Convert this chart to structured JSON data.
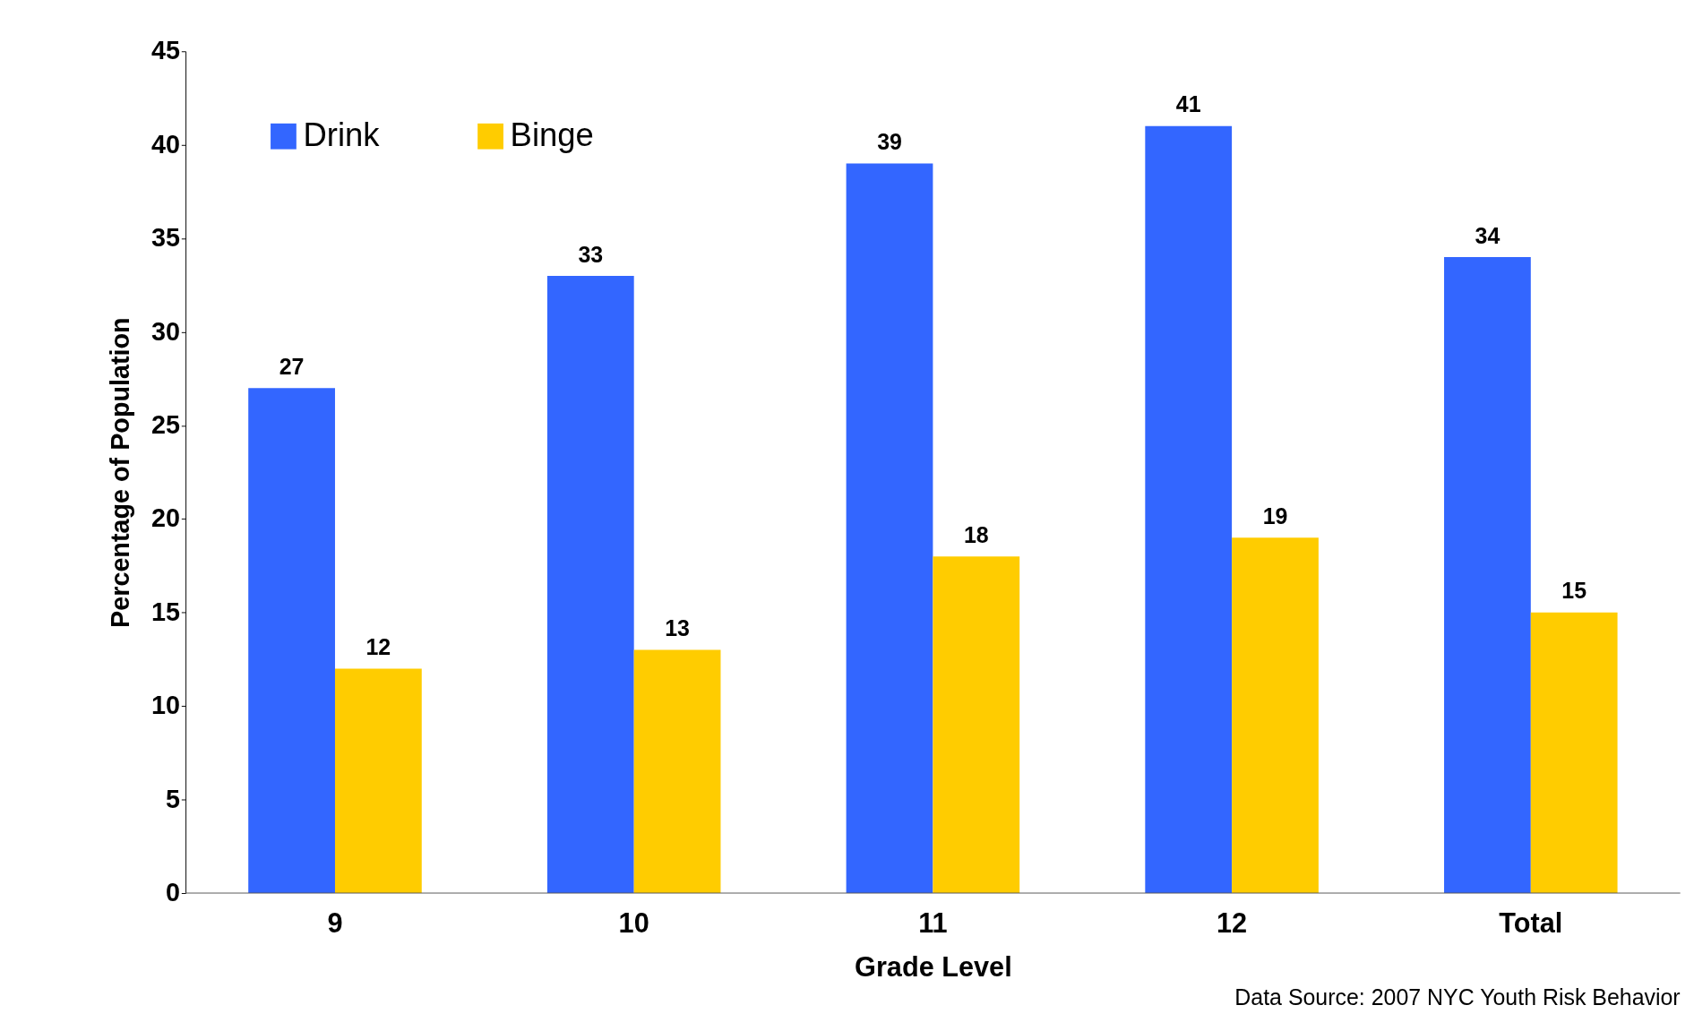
{
  "chart_data": {
    "type": "bar",
    "xlabel": "Grade Level",
    "ylabel": "Percentage of Population",
    "categories": [
      "9",
      "10",
      "11",
      "12",
      "Total"
    ],
    "series": [
      {
        "name": "Drink",
        "color": "#3366ff",
        "values": [
          27,
          33,
          39,
          41,
          34
        ]
      },
      {
        "name": "Binge",
        "color": "#ffcc00",
        "values": [
          12,
          13,
          18,
          19,
          15
        ]
      }
    ],
    "ylim": [
      0,
      45
    ],
    "yticks": [
      0,
      5,
      10,
      15,
      20,
      25,
      30,
      35,
      40,
      45
    ],
    "data_labels": true,
    "grid": false,
    "legend": "top left",
    "annotations": [
      "Data Source: 2007 NYC Youth Risk Behavior"
    ]
  }
}
